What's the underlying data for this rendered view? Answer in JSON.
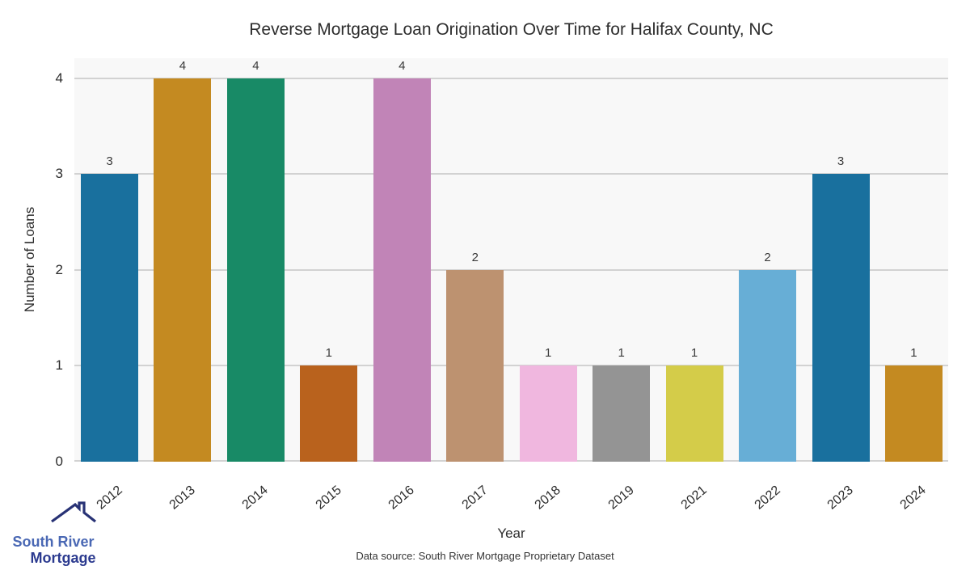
{
  "chart_data": {
    "type": "bar",
    "title": "Reverse Mortgage Loan Origination Over Time for Halifax County, NC",
    "xlabel": "Year",
    "ylabel": "Number of Loans",
    "categories": [
      "2012",
      "2013",
      "2014",
      "2015",
      "2016",
      "2017",
      "2018",
      "2019",
      "2021",
      "2022",
      "2023",
      "2024"
    ],
    "values": [
      3,
      4,
      4,
      1,
      4,
      2,
      1,
      1,
      1,
      2,
      3,
      1
    ],
    "bar_colors": [
      "#19709e",
      "#c48a21",
      "#188a66",
      "#b9621d",
      "#c184b7",
      "#bd9270",
      "#f0b7df",
      "#949494",
      "#d4cc49",
      "#67aed6",
      "#19709e",
      "#c48a21"
    ],
    "yticks": [
      0,
      1,
      2,
      3,
      4
    ],
    "ylim": [
      0,
      4.21
    ],
    "grid": "horizontal",
    "legend": "none",
    "value_labels_above_bars": true,
    "plot_background": "#f8f8f8",
    "gridline_color": "#d2d2d2",
    "tick_label_color": "#2b2b2b"
  },
  "footer": {
    "source_note": "Data source: South River Mortgage Proprietary Dataset"
  },
  "logo": {
    "line1": "South River",
    "line2": "Mortgage",
    "line1_color": "#4a68b4",
    "line2_color": "#2b3a8f",
    "roof_color": "#283275"
  }
}
